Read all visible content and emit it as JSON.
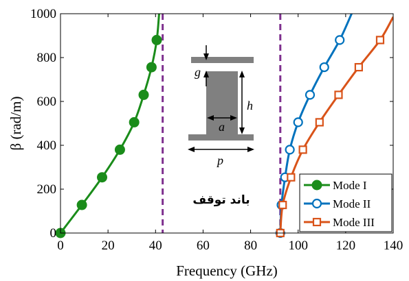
{
  "chart_data": {
    "type": "line",
    "xlabel": "Frequency (GHz)",
    "ylabel": "β (rad/m)",
    "xlim": [
      0,
      140
    ],
    "ylim": [
      0,
      1000
    ],
    "xticks": [
      0,
      20,
      40,
      60,
      80,
      100,
      120,
      140
    ],
    "yticks": [
      0,
      200,
      400,
      600,
      800,
      1000
    ],
    "grid": false,
    "legend_position": "bottom-right",
    "series": [
      {
        "name": "Mode I",
        "color": "#1a8c1a",
        "marker": "filled-circle",
        "x": [
          0,
          9,
          17.5,
          25,
          31,
          35,
          38.3,
          40.5,
          41.5
        ],
        "y": [
          0,
          128,
          254,
          380,
          505,
          630,
          756,
          880,
          1000
        ],
        "marker_points": [
          [
            0,
            0
          ],
          [
            9,
            128
          ],
          [
            17.5,
            254
          ],
          [
            25,
            380
          ],
          [
            31,
            505
          ],
          [
            35,
            630
          ],
          [
            38.3,
            756
          ],
          [
            40.5,
            880
          ]
        ]
      },
      {
        "name": "Mode II",
        "color": "#0072bd",
        "marker": "open-circle",
        "x": [
          92.5,
          93,
          94.5,
          96.5,
          100,
          105,
          111,
          117.5,
          122.5
        ],
        "y": [
          0,
          128,
          254,
          380,
          505,
          630,
          756,
          880,
          1000
        ],
        "marker_points": [
          [
            92.5,
            0
          ],
          [
            93,
            128
          ],
          [
            94.5,
            254
          ],
          [
            96.5,
            380
          ],
          [
            100,
            505
          ],
          [
            105,
            630
          ],
          [
            111,
            756
          ],
          [
            117.5,
            880
          ]
        ]
      },
      {
        "name": "Mode III",
        "color": "#d95319",
        "marker": "open-square",
        "x": [
          92.5,
          93.5,
          97,
          102,
          109,
          117,
          125.5,
          134.5,
          140
        ],
        "y": [
          0,
          128,
          254,
          380,
          505,
          630,
          756,
          880,
          985
        ],
        "marker_points": [
          [
            92.5,
            0
          ],
          [
            93.5,
            128
          ],
          [
            97,
            254
          ],
          [
            102,
            380
          ],
          [
            109,
            505
          ],
          [
            117,
            630
          ],
          [
            125.5,
            756
          ],
          [
            134.5,
            880
          ]
        ]
      }
    ],
    "vlines": [
      {
        "x": 43,
        "color": "#7e2f8e",
        "style": "dashed"
      },
      {
        "x": 92.5,
        "color": "#7e2f8e",
        "style": "dashed"
      }
    ],
    "annotations": {
      "stopband_text": "باند توقف",
      "inset_labels": {
        "g": "g",
        "h": "h",
        "a": "a",
        "p": "p"
      }
    }
  }
}
